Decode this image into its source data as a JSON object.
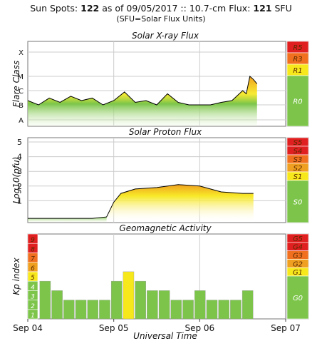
{
  "header": {
    "prefix": "Sun Spots:",
    "sunspots": "122",
    "as_of_label": "as of",
    "date": "09/05/2017",
    "sep": "::",
    "flux_label": "10.7-cm Flux:",
    "flux": "121",
    "flux_unit": "SFU",
    "subtitle": "(SFU=Solar Flux Units)"
  },
  "colors": {
    "green": "#7cc54a",
    "green_light": "#e8f5da",
    "yellow": "#f7e81c",
    "orange": "#f0a020",
    "dark_orange": "#f07020",
    "red": "#e02020",
    "border": "#777777",
    "grid": "#cccccc",
    "line": "#000000"
  },
  "chart_data": [
    {
      "type": "line",
      "title": "Solar X-ray Flux",
      "ylabel": "Flare Class",
      "y_ticks": [
        "A",
        "B",
        "C",
        "M",
        "X"
      ],
      "y_scale": "log",
      "x": [
        "Sep 04 00:00",
        "Sep 04 03:00",
        "Sep 04 06:00",
        "Sep 04 09:00",
        "Sep 04 12:00",
        "Sep 04 15:00",
        "Sep 04 18:00",
        "Sep 04 21:00",
        "Sep 05 00:00",
        "Sep 05 03:00",
        "Sep 05 06:00",
        "Sep 05 09:00",
        "Sep 05 12:00",
        "Sep 05 15:00",
        "Sep 05 18:00",
        "Sep 05 21:00",
        "Sep 06 00:00",
        "Sep 06 03:00",
        "Sep 06 06:00",
        "Sep 06 09:00",
        "Sep 06 12:00",
        "Sep 06 13:00",
        "Sep 06 14:00",
        "Sep 06 15:00",
        "Sep 06 16:00"
      ],
      "values": [
        "C2",
        "C1",
        "C3",
        "C1.5",
        "C4",
        "C2",
        "C3",
        "C1",
        "C2",
        "C8",
        "C1.5",
        "C2",
        "C1",
        "C6",
        "C1.5",
        "C1",
        "C1",
        "C1",
        "C1.5",
        "C2",
        "M1",
        "C6",
        "X1",
        "M6",
        "M3"
      ],
      "scale_labels": [
        {
          "label": "R5",
          "color": "#e02020"
        },
        {
          "label": "R3",
          "color": "#f07020"
        },
        {
          "label": "R1",
          "color": "#f7e81c"
        },
        {
          "label": "R0",
          "color": "#7cc54a"
        }
      ]
    },
    {
      "type": "line",
      "title": "Solar Proton Flux",
      "ylabel": "Log10(pfu)",
      "y_ticks": [
        "1",
        "2",
        "3",
        "4",
        "5"
      ],
      "ylim": [
        0,
        5.5
      ],
      "x": [
        "Sep 04 00:00",
        "Sep 04 06:00",
        "Sep 04 12:00",
        "Sep 04 18:00",
        "Sep 04 22:00",
        "Sep 05 00:00",
        "Sep 05 02:00",
        "Sep 05 06:00",
        "Sep 05 12:00",
        "Sep 05 18:00",
        "Sep 06 00:00",
        "Sep 06 06:00",
        "Sep 06 12:00",
        "Sep 06 15:00"
      ],
      "values": [
        -0.2,
        -0.2,
        -0.2,
        -0.2,
        -0.1,
        0.9,
        1.5,
        1.8,
        1.9,
        2.1,
        2.0,
        1.6,
        1.5,
        1.5
      ],
      "scale_labels": [
        {
          "label": "S5",
          "color": "#e02020"
        },
        {
          "label": "S4",
          "color": "#e02020"
        },
        {
          "label": "S3",
          "color": "#f07020"
        },
        {
          "label": "S2",
          "color": "#f0a020"
        },
        {
          "label": "S1",
          "color": "#f7e81c"
        },
        {
          "label": "S0",
          "color": "#7cc54a"
        }
      ]
    },
    {
      "type": "bar",
      "title": "Geomagnetic Activity",
      "ylabel": "Kp index",
      "ylim": [
        0,
        9
      ],
      "y_ticks": [
        "1",
        "2",
        "3",
        "4",
        "5",
        "6",
        "7",
        "8",
        "9"
      ],
      "values": [
        4,
        3,
        2,
        2,
        2,
        2,
        4,
        5,
        4,
        3,
        3,
        2,
        2,
        3,
        2,
        2,
        2,
        3
      ],
      "scale_labels": [
        {
          "label": "G5",
          "color": "#e02020"
        },
        {
          "label": "G4",
          "color": "#e02020"
        },
        {
          "label": "G3",
          "color": "#f07020"
        },
        {
          "label": "G2",
          "color": "#f0a020"
        },
        {
          "label": "G1",
          "color": "#f7e81c"
        },
        {
          "label": "G0",
          "color": "#7cc54a"
        }
      ]
    }
  ],
  "x_axis": {
    "labels": [
      "Sep 04",
      "Sep 05",
      "Sep 06",
      "Sep 07"
    ],
    "title": "Universal Time"
  }
}
